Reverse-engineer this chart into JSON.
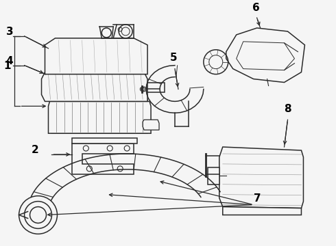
{
  "background_color": "#f5f5f5",
  "line_color": "#2a2a2a",
  "label_color": "#000000",
  "fig_width": 4.9,
  "fig_height": 3.6,
  "dpi": 100
}
